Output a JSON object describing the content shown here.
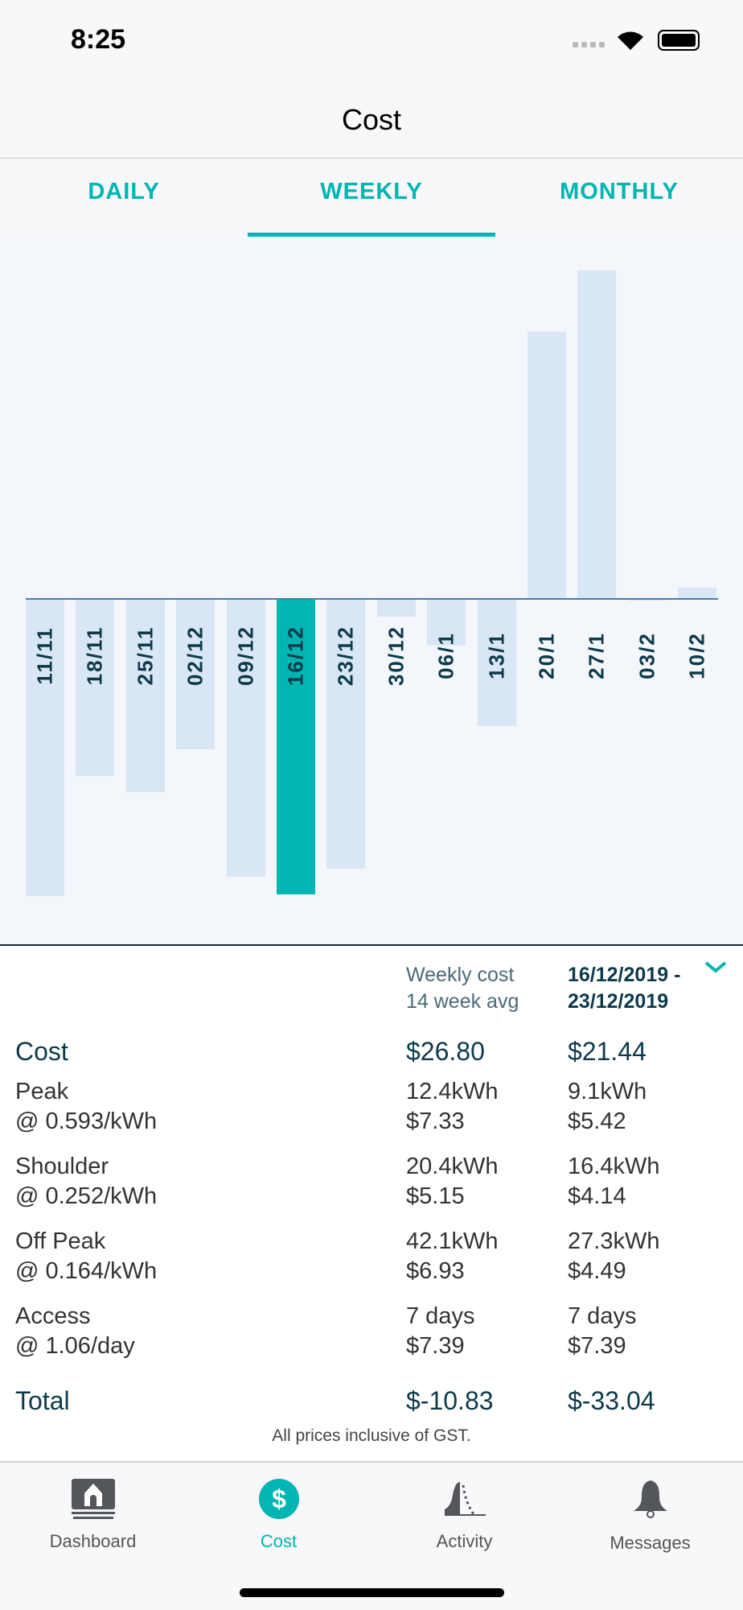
{
  "status_bar": {
    "time": "8:25"
  },
  "header": {
    "title": "Cost"
  },
  "tabs": [
    {
      "label": "DAILY"
    },
    {
      "label": "WEEKLY",
      "active": true
    },
    {
      "label": "MONTHLY"
    }
  ],
  "chart_data": {
    "type": "bar",
    "title": "",
    "categories": [
      "11/11",
      "18/11",
      "25/11",
      "02/12",
      "09/12",
      "16/12",
      "23/12",
      "30/12",
      "06/1",
      "13/1",
      "20/1",
      "27/1",
      "03/2",
      "10/2"
    ],
    "values": [
      -33.2,
      -19.8,
      -21.6,
      -16.8,
      -31.1,
      -33.04,
      -30.2,
      -2.0,
      -5.2,
      -14.2,
      29.9,
      36.7,
      -0.1,
      1.3
    ],
    "selected": "16/12",
    "ylim": [
      -37,
      40
    ],
    "colors": {
      "bar": "#d9e6f5",
      "selected": "#00b5b2",
      "zero_line": "#4a7ca8"
    }
  },
  "summary": {
    "col1_header": [
      "Weekly cost",
      "14 week avg"
    ],
    "col2_header": [
      "16/12/2019 -",
      "23/12/2019"
    ],
    "cost": {
      "label": "Cost",
      "avg": "$26.80",
      "week": "$21.44"
    },
    "rows": [
      {
        "label": "Peak",
        "rate": "@ 0.593/kWh",
        "avg_qty": "12.4kWh",
        "avg_cost": "$7.33",
        "week_qty": "9.1kWh",
        "week_cost": "$5.42"
      },
      {
        "label": "Shoulder",
        "rate": "@ 0.252/kWh",
        "avg_qty": "20.4kWh",
        "avg_cost": "$5.15",
        "week_qty": "16.4kWh",
        "week_cost": "$4.14"
      },
      {
        "label": "Off Peak",
        "rate": "@ 0.164/kWh",
        "avg_qty": "42.1kWh",
        "avg_cost": "$6.93",
        "week_qty": "27.3kWh",
        "week_cost": "$4.49"
      },
      {
        "label": "Access",
        "rate": "@ 1.06/day",
        "avg_qty": "7 days",
        "avg_cost": "$7.39",
        "week_qty": "7 days",
        "week_cost": "$7.39"
      }
    ],
    "total": {
      "label": "Total",
      "avg": "$-10.83",
      "week": "$-33.04"
    },
    "footnote": "All prices inclusive of GST."
  },
  "nav": [
    {
      "label": "Dashboard"
    },
    {
      "label": "Cost",
      "active": true
    },
    {
      "label": "Activity"
    },
    {
      "label": "Messages"
    }
  ],
  "colors": {
    "accent": "#00b5b2",
    "text_dark": "#0d3a4a"
  }
}
